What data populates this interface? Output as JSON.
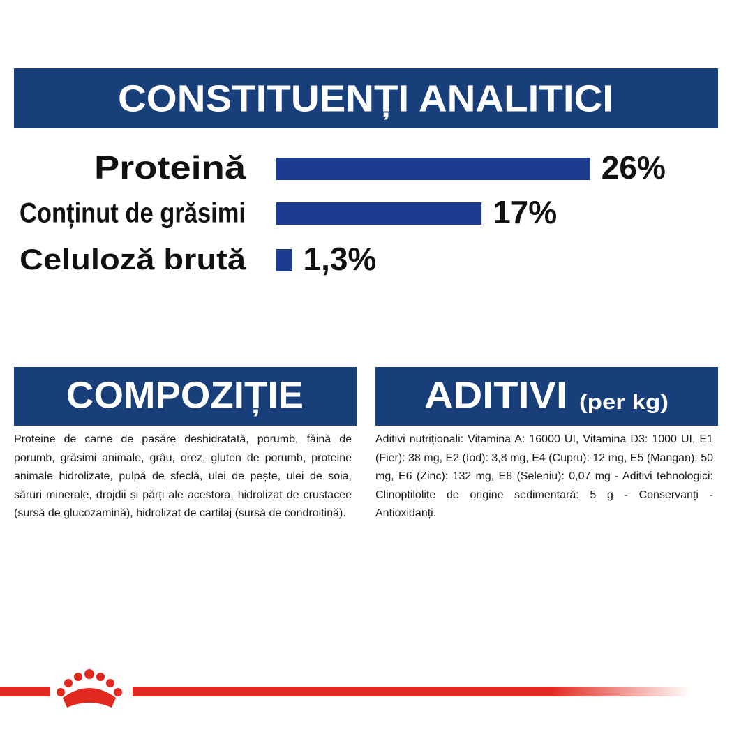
{
  "chart_data": {
    "type": "bar",
    "title": "CONSTITUENȚI ANALITICI",
    "categories": [
      "Proteină",
      "Conținut de grăsimi",
      "Celuloză brută"
    ],
    "values": [
      26,
      17,
      1.3
    ],
    "value_labels": [
      "26%",
      "17%",
      "1,3%"
    ],
    "color": "#1d3b8f"
  },
  "composition": {
    "title": "COMPOZIȚIE",
    "text": "Proteine de carne de pasăre deshidratată, porumb, făină de porumb, grăsimi animale, grâu, orez, gluten de porumb, proteine animale hidrolizate, pulpă de sfeclă, ulei de pește, ulei de soia, săruri minerale, drojdii și părți ale acestora, hidrolizat de crustacee (sursă de glucozamină), hidrolizat de cartilaj (sursă de condroitină)."
  },
  "additives": {
    "title": "ADITIVI",
    "unit": "(per kg)",
    "text": "Aditivi nutriționali: Vitamina A: 16000 UI, Vitamina D3: 1000 UI, E1 (Fier): 38 mg, E2 (Iod): 3,8 mg, E4 (Cupru): 12 mg, E5 (Mangan): 50 mg, E6 (Zinc): 132 mg, E8 (Seleniu): 0,07 mg - Aditivi tehnologici: Clinoptilolite de origine sedimentară: 5 g - Conservanți - Antioxidanți."
  }
}
